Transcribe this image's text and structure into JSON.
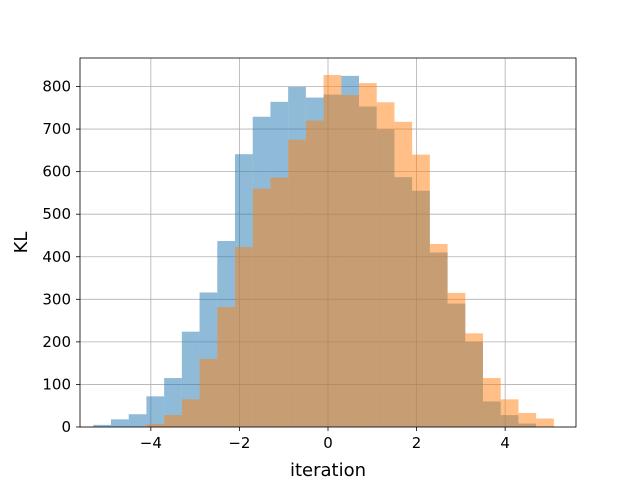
{
  "chart_data": {
    "type": "bar",
    "title": "",
    "xlabel": "iteration",
    "ylabel": "KL",
    "xlim": [
      -5.6,
      5.6
    ],
    "ylim": [
      0,
      867
    ],
    "grid": true,
    "legend": "none",
    "x_ticks": [
      -4,
      -2,
      0,
      2,
      4
    ],
    "x_tick_labels": [
      "−4",
      "−2",
      "0",
      "2",
      "4"
    ],
    "y_ticks": [
      0,
      100,
      200,
      300,
      400,
      500,
      600,
      700,
      800
    ],
    "y_tick_labels": [
      "0",
      "100",
      "200",
      "300",
      "400",
      "500",
      "600",
      "700",
      "800"
    ],
    "series": [
      {
        "color": "#1f77b4",
        "opacity": 0.5,
        "bins": [
          {
            "x0": -5.3,
            "x1": -4.9,
            "value": 5
          },
          {
            "x0": -4.9,
            "x1": -4.5,
            "value": 18
          },
          {
            "x0": -4.5,
            "x1": -4.1,
            "value": 30
          },
          {
            "x0": -4.1,
            "x1": -3.7,
            "value": 72
          },
          {
            "x0": -3.7,
            "x1": -3.3,
            "value": 115
          },
          {
            "x0": -3.3,
            "x1": -2.9,
            "value": 224
          },
          {
            "x0": -2.9,
            "x1": -2.5,
            "value": 316
          },
          {
            "x0": -2.5,
            "x1": -2.1,
            "value": 437
          },
          {
            "x0": -2.1,
            "x1": -1.7,
            "value": 641
          },
          {
            "x0": -1.7,
            "x1": -1.3,
            "value": 729
          },
          {
            "x0": -1.3,
            "x1": -0.9,
            "value": 764
          },
          {
            "x0": -0.9,
            "x1": -0.5,
            "value": 799
          },
          {
            "x0": -0.5,
            "x1": -0.1,
            "value": 774
          },
          {
            "x0": -0.1,
            "x1": 0.3,
            "value": 781
          },
          {
            "x0": 0.3,
            "x1": 0.7,
            "value": 825
          },
          {
            "x0": 0.7,
            "x1": 1.1,
            "value": 753
          },
          {
            "x0": 1.1,
            "x1": 1.5,
            "value": 699
          },
          {
            "x0": 1.5,
            "x1": 1.9,
            "value": 587
          },
          {
            "x0": 1.9,
            "x1": 2.3,
            "value": 555
          },
          {
            "x0": 2.3,
            "x1": 2.7,
            "value": 410
          },
          {
            "x0": 2.7,
            "x1": 3.1,
            "value": 290
          },
          {
            "x0": 3.1,
            "x1": 3.5,
            "value": 200
          },
          {
            "x0": 3.5,
            "x1": 3.9,
            "value": 60
          },
          {
            "x0": 3.9,
            "x1": 4.3,
            "value": 28
          },
          {
            "x0": 4.3,
            "x1": 4.7,
            "value": 8
          }
        ]
      },
      {
        "color": "#ff7f0e",
        "opacity": 0.5,
        "bins": [
          {
            "x0": -4.1,
            "x1": -3.7,
            "value": 7
          },
          {
            "x0": -3.7,
            "x1": -3.3,
            "value": 28
          },
          {
            "x0": -3.3,
            "x1": -2.9,
            "value": 65
          },
          {
            "x0": -2.9,
            "x1": -2.5,
            "value": 160
          },
          {
            "x0": -2.5,
            "x1": -2.1,
            "value": 282
          },
          {
            "x0": -2.1,
            "x1": -1.7,
            "value": 423
          },
          {
            "x0": -1.7,
            "x1": -1.3,
            "value": 560
          },
          {
            "x0": -1.3,
            "x1": -0.9,
            "value": 586
          },
          {
            "x0": -0.9,
            "x1": -0.5,
            "value": 675
          },
          {
            "x0": -0.5,
            "x1": -0.1,
            "value": 720
          },
          {
            "x0": -0.1,
            "x1": 0.3,
            "value": 827
          },
          {
            "x0": 0.3,
            "x1": 0.7,
            "value": 780
          },
          {
            "x0": 0.7,
            "x1": 1.1,
            "value": 808
          },
          {
            "x0": 1.1,
            "x1": 1.5,
            "value": 763
          },
          {
            "x0": 1.5,
            "x1": 1.9,
            "value": 717
          },
          {
            "x0": 1.9,
            "x1": 2.3,
            "value": 640
          },
          {
            "x0": 2.3,
            "x1": 2.7,
            "value": 430
          },
          {
            "x0": 2.7,
            "x1": 3.1,
            "value": 315
          },
          {
            "x0": 3.1,
            "x1": 3.5,
            "value": 220
          },
          {
            "x0": 3.5,
            "x1": 3.9,
            "value": 115
          },
          {
            "x0": 3.9,
            "x1": 4.3,
            "value": 65
          },
          {
            "x0": 4.3,
            "x1": 4.7,
            "value": 33
          },
          {
            "x0": 4.7,
            "x1": 5.1,
            "value": 20
          }
        ]
      }
    ]
  }
}
